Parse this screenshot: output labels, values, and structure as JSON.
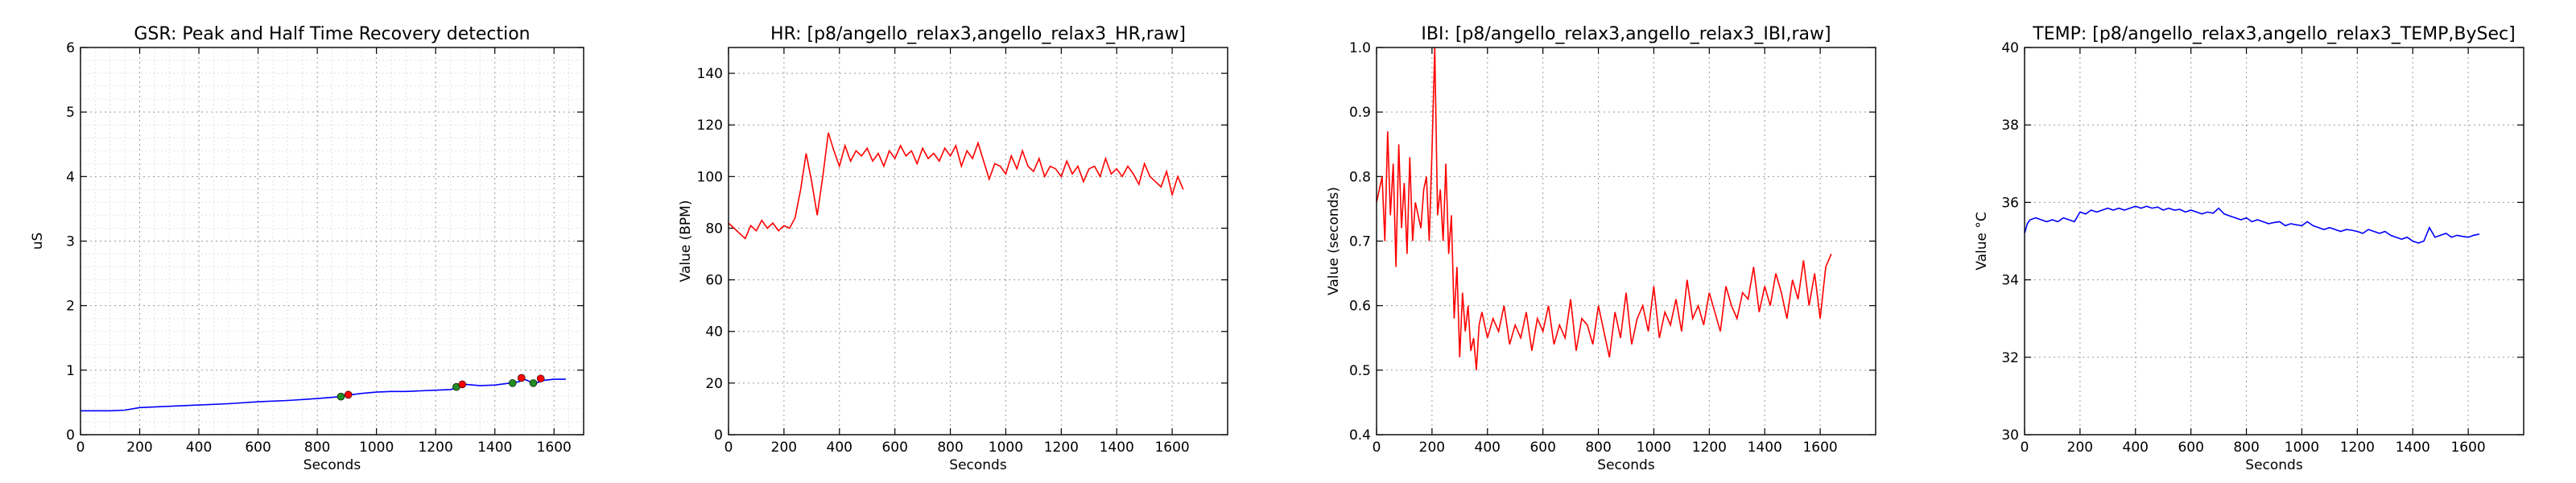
{
  "chart_data": [
    {
      "type": "line",
      "title": "GSR: Peak and Half Time Recovery detection",
      "xlabel": "Seconds",
      "ylabel": "uS",
      "xlim": [
        0,
        1700
      ],
      "ylim": [
        0,
        6
      ],
      "xticks": [
        0,
        200,
        400,
        600,
        800,
        1000,
        1200,
        1400,
        1600
      ],
      "yticks": [
        0,
        1,
        2,
        3,
        4,
        5,
        6
      ],
      "grid": true,
      "minor_grid": true,
      "series": [
        {
          "color": "#0000ff",
          "x": [
            0,
            100,
            150,
            200,
            300,
            400,
            500,
            600,
            700,
            800,
            880,
            900,
            950,
            1000,
            1050,
            1100,
            1150,
            1200,
            1250,
            1280,
            1300,
            1350,
            1400,
            1450,
            1480,
            1500,
            1520,
            1540,
            1560,
            1600,
            1640
          ],
          "y": [
            0.37,
            0.37,
            0.38,
            0.42,
            0.44,
            0.46,
            0.48,
            0.51,
            0.53,
            0.56,
            0.59,
            0.61,
            0.64,
            0.66,
            0.67,
            0.67,
            0.68,
            0.69,
            0.7,
            0.74,
            0.78,
            0.76,
            0.77,
            0.8,
            0.82,
            0.86,
            0.82,
            0.8,
            0.84,
            0.86,
            0.86
          ]
        }
      ],
      "markers": [
        {
          "x": 880,
          "y": 0.59,
          "color": "#228b22"
        },
        {
          "x": 905,
          "y": 0.62,
          "color": "#ff0000"
        },
        {
          "x": 1270,
          "y": 0.74,
          "color": "#228b22"
        },
        {
          "x": 1290,
          "y": 0.78,
          "color": "#ff0000"
        },
        {
          "x": 1460,
          "y": 0.8,
          "color": "#228b22"
        },
        {
          "x": 1490,
          "y": 0.88,
          "color": "#ff0000"
        },
        {
          "x": 1530,
          "y": 0.8,
          "color": "#228b22"
        },
        {
          "x": 1555,
          "y": 0.87,
          "color": "#ff0000"
        }
      ]
    },
    {
      "type": "line",
      "title": "HR: [p8/angello_relax3,angello_relax3_HR,raw]",
      "xlabel": "Seconds",
      "ylabel": "Value (BPM)",
      "xlim": [
        0,
        1800
      ],
      "ylim": [
        0,
        150
      ],
      "xticks": [
        0,
        200,
        400,
        600,
        800,
        1000,
        1200,
        1400,
        1600
      ],
      "yticks": [
        0,
        20,
        40,
        60,
        80,
        100,
        120,
        140
      ],
      "grid": true,
      "series": [
        {
          "color": "#ff0000",
          "x": [
            0,
            20,
            40,
            60,
            80,
            100,
            120,
            140,
            160,
            180,
            200,
            220,
            240,
            260,
            280,
            300,
            320,
            340,
            360,
            380,
            400,
            420,
            440,
            460,
            480,
            500,
            520,
            540,
            560,
            580,
            600,
            620,
            640,
            660,
            680,
            700,
            720,
            740,
            760,
            780,
            800,
            820,
            840,
            860,
            880,
            900,
            920,
            940,
            960,
            980,
            1000,
            1020,
            1040,
            1060,
            1080,
            1100,
            1120,
            1140,
            1160,
            1180,
            1200,
            1220,
            1240,
            1260,
            1280,
            1300,
            1320,
            1340,
            1360,
            1380,
            1400,
            1420,
            1440,
            1460,
            1480,
            1500,
            1520,
            1540,
            1560,
            1580,
            1600,
            1620,
            1640
          ],
          "y": [
            82,
            80,
            78,
            76,
            81,
            79,
            83,
            80,
            82,
            79,
            81,
            80,
            84,
            95,
            109,
            98,
            85,
            100,
            117,
            110,
            104,
            112,
            106,
            110,
            108,
            111,
            106,
            109,
            104,
            110,
            107,
            112,
            108,
            110,
            105,
            111,
            107,
            109,
            106,
            111,
            108,
            112,
            104,
            110,
            107,
            113,
            106,
            99,
            105,
            104,
            101,
            108,
            103,
            110,
            104,
            102,
            107,
            100,
            104,
            103,
            100,
            106,
            101,
            104,
            98,
            103,
            104,
            100,
            107,
            101,
            103,
            100,
            104,
            101,
            97,
            105,
            100,
            98,
            96,
            102,
            93,
            100,
            95
          ]
        }
      ]
    },
    {
      "type": "line",
      "title": "IBI: [p8/angello_relax3,angello_relax3_IBI,raw]",
      "xlabel": "Seconds",
      "ylabel": "Value (seconds)",
      "xlim": [
        0,
        1800
      ],
      "ylim": [
        0.4,
        1.0
      ],
      "xticks": [
        0,
        200,
        400,
        600,
        800,
        1000,
        1200,
        1400,
        1600
      ],
      "yticks": [
        0.4,
        0.5,
        0.6,
        0.7,
        0.8,
        0.9,
        1.0
      ],
      "grid": true,
      "series": [
        {
          "color": "#ff0000",
          "x": [
            0,
            20,
            30,
            40,
            50,
            60,
            70,
            80,
            90,
            100,
            110,
            120,
            130,
            140,
            150,
            160,
            170,
            180,
            190,
            200,
            210,
            220,
            230,
            240,
            250,
            260,
            270,
            280,
            290,
            300,
            310,
            320,
            330,
            340,
            350,
            360,
            370,
            380,
            400,
            420,
            440,
            460,
            480,
            500,
            520,
            540,
            560,
            580,
            600,
            620,
            640,
            660,
            680,
            700,
            720,
            740,
            760,
            780,
            800,
            820,
            840,
            860,
            880,
            900,
            920,
            940,
            960,
            980,
            1000,
            1020,
            1040,
            1060,
            1080,
            1100,
            1120,
            1140,
            1160,
            1180,
            1200,
            1220,
            1240,
            1260,
            1280,
            1300,
            1320,
            1340,
            1360,
            1380,
            1400,
            1420,
            1440,
            1460,
            1480,
            1500,
            1520,
            1540,
            1560,
            1580,
            1600,
            1620,
            1640
          ],
          "y": [
            0.76,
            0.8,
            0.7,
            0.87,
            0.74,
            0.82,
            0.66,
            0.85,
            0.72,
            0.79,
            0.68,
            0.83,
            0.7,
            0.76,
            0.74,
            0.72,
            0.78,
            0.8,
            0.7,
            0.84,
            1.0,
            0.74,
            0.78,
            0.7,
            0.82,
            0.68,
            0.74,
            0.58,
            0.66,
            0.52,
            0.62,
            0.56,
            0.6,
            0.53,
            0.55,
            0.5,
            0.57,
            0.59,
            0.55,
            0.58,
            0.56,
            0.6,
            0.54,
            0.57,
            0.55,
            0.59,
            0.53,
            0.58,
            0.56,
            0.6,
            0.54,
            0.57,
            0.55,
            0.61,
            0.53,
            0.58,
            0.57,
            0.54,
            0.6,
            0.56,
            0.52,
            0.59,
            0.55,
            0.62,
            0.54,
            0.58,
            0.6,
            0.56,
            0.63,
            0.55,
            0.59,
            0.57,
            0.61,
            0.56,
            0.64,
            0.58,
            0.6,
            0.57,
            0.62,
            0.59,
            0.56,
            0.63,
            0.6,
            0.58,
            0.62,
            0.61,
            0.66,
            0.59,
            0.63,
            0.6,
            0.65,
            0.62,
            0.58,
            0.64,
            0.61,
            0.67,
            0.6,
            0.65,
            0.58,
            0.66,
            0.68
          ]
        }
      ]
    },
    {
      "type": "line",
      "title": "TEMP: [p8/angello_relax3,angello_relax3_TEMP,BySec]",
      "xlabel": "Seconds",
      "ylabel": "Value °C",
      "xlim": [
        0,
        1800
      ],
      "ylim": [
        30,
        40
      ],
      "xticks": [
        0,
        200,
        400,
        600,
        800,
        1000,
        1200,
        1400,
        1600
      ],
      "yticks": [
        30,
        32,
        34,
        36,
        38,
        40
      ],
      "grid": true,
      "series": [
        {
          "color": "#0000ff",
          "x": [
            0,
            10,
            20,
            40,
            60,
            80,
            100,
            120,
            140,
            160,
            180,
            200,
            220,
            240,
            260,
            280,
            300,
            320,
            340,
            360,
            380,
            400,
            420,
            440,
            460,
            480,
            500,
            520,
            540,
            560,
            580,
            600,
            620,
            640,
            660,
            680,
            700,
            720,
            740,
            760,
            780,
            800,
            820,
            840,
            860,
            880,
            900,
            920,
            940,
            960,
            980,
            1000,
            1020,
            1040,
            1060,
            1080,
            1100,
            1120,
            1140,
            1160,
            1180,
            1200,
            1220,
            1240,
            1260,
            1280,
            1300,
            1320,
            1340,
            1360,
            1380,
            1400,
            1420,
            1440,
            1460,
            1480,
            1500,
            1520,
            1540,
            1560,
            1580,
            1600,
            1620,
            1640
          ],
          "y": [
            35.2,
            35.45,
            35.55,
            35.6,
            35.55,
            35.5,
            35.55,
            35.5,
            35.6,
            35.55,
            35.5,
            35.75,
            35.7,
            35.8,
            35.75,
            35.8,
            35.85,
            35.8,
            35.85,
            35.8,
            35.85,
            35.9,
            35.85,
            35.9,
            35.85,
            35.88,
            35.8,
            35.85,
            35.8,
            35.82,
            35.75,
            35.8,
            35.75,
            35.7,
            35.75,
            35.72,
            35.85,
            35.7,
            35.65,
            35.6,
            35.55,
            35.6,
            35.5,
            35.55,
            35.5,
            35.45,
            35.48,
            35.5,
            35.4,
            35.45,
            35.42,
            35.4,
            35.5,
            35.4,
            35.35,
            35.3,
            35.35,
            35.3,
            35.25,
            35.3,
            35.28,
            35.25,
            35.2,
            35.3,
            35.25,
            35.2,
            35.25,
            35.15,
            35.1,
            35.05,
            35.1,
            35.0,
            34.95,
            35.0,
            35.35,
            35.1,
            35.15,
            35.2,
            35.1,
            35.15,
            35.12,
            35.1,
            35.15,
            35.18
          ]
        }
      ]
    }
  ]
}
